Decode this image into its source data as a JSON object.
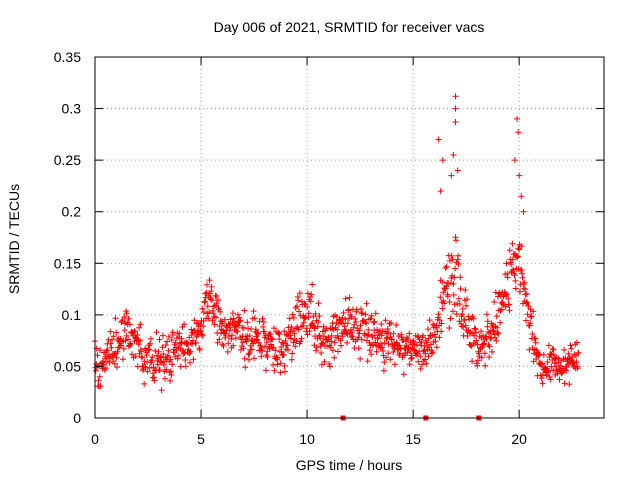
{
  "chart_data": {
    "type": "scatter",
    "title": "Day 006 of 2021, SRMTID for receiver vacs",
    "xlabel": "GPS time / hours",
    "ylabel": "SRMTID / TECUs",
    "xlim": [
      0,
      24
    ],
    "ylim": [
      0,
      0.35
    ],
    "xticks": [
      0,
      5,
      10,
      15,
      20
    ],
    "xtick_labels": [
      "0",
      "5",
      "10",
      "15",
      "20"
    ],
    "yticks": [
      0,
      0.05,
      0.1,
      0.15,
      0.2,
      0.25,
      0.3,
      0.35
    ],
    "ytick_labels": [
      "0",
      "0.05",
      "0.1",
      "0.15",
      "0.2",
      "0.25",
      "0.3",
      "0.35"
    ],
    "grid": true,
    "marker": "plus",
    "series": [
      {
        "name": "SRMTID",
        "color": "#ff0000",
        "sampling_hours": 0.02,
        "x_start": 0.0,
        "x_end": 22.8,
        "envelope": [
          {
            "x": 0.0,
            "y": 0.06,
            "spread": 0.02
          },
          {
            "x": 0.3,
            "y": 0.045,
            "spread": 0.02
          },
          {
            "x": 0.6,
            "y": 0.06,
            "spread": 0.02
          },
          {
            "x": 1.0,
            "y": 0.075,
            "spread": 0.025
          },
          {
            "x": 1.5,
            "y": 0.085,
            "spread": 0.025
          },
          {
            "x": 2.0,
            "y": 0.07,
            "spread": 0.025
          },
          {
            "x": 2.5,
            "y": 0.055,
            "spread": 0.025
          },
          {
            "x": 3.0,
            "y": 0.055,
            "spread": 0.025
          },
          {
            "x": 3.5,
            "y": 0.06,
            "spread": 0.025
          },
          {
            "x": 4.0,
            "y": 0.07,
            "spread": 0.025
          },
          {
            "x": 4.5,
            "y": 0.075,
            "spread": 0.025
          },
          {
            "x": 5.0,
            "y": 0.09,
            "spread": 0.03
          },
          {
            "x": 5.4,
            "y": 0.12,
            "spread": 0.03
          },
          {
            "x": 6.0,
            "y": 0.085,
            "spread": 0.025
          },
          {
            "x": 7.0,
            "y": 0.08,
            "spread": 0.025
          },
          {
            "x": 8.0,
            "y": 0.075,
            "spread": 0.025
          },
          {
            "x": 8.8,
            "y": 0.065,
            "spread": 0.025
          },
          {
            "x": 9.5,
            "y": 0.09,
            "spread": 0.025
          },
          {
            "x": 10.2,
            "y": 0.1,
            "spread": 0.03
          },
          {
            "x": 10.7,
            "y": 0.07,
            "spread": 0.025
          },
          {
            "x": 11.5,
            "y": 0.085,
            "spread": 0.025
          },
          {
            "x": 12.5,
            "y": 0.09,
            "spread": 0.03
          },
          {
            "x": 13.5,
            "y": 0.075,
            "spread": 0.025
          },
          {
            "x": 14.5,
            "y": 0.065,
            "spread": 0.02
          },
          {
            "x": 15.5,
            "y": 0.065,
            "spread": 0.02
          },
          {
            "x": 16.0,
            "y": 0.08,
            "spread": 0.025
          },
          {
            "x": 16.5,
            "y": 0.12,
            "spread": 0.035
          },
          {
            "x": 17.0,
            "y": 0.14,
            "spread": 0.04
          },
          {
            "x": 17.6,
            "y": 0.08,
            "spread": 0.025
          },
          {
            "x": 18.2,
            "y": 0.07,
            "spread": 0.025
          },
          {
            "x": 18.8,
            "y": 0.085,
            "spread": 0.025
          },
          {
            "x": 19.5,
            "y": 0.13,
            "spread": 0.035
          },
          {
            "x": 20.0,
            "y": 0.15,
            "spread": 0.035
          },
          {
            "x": 20.5,
            "y": 0.09,
            "spread": 0.025
          },
          {
            "x": 21.0,
            "y": 0.05,
            "spread": 0.018
          },
          {
            "x": 22.0,
            "y": 0.05,
            "spread": 0.018
          },
          {
            "x": 22.8,
            "y": 0.06,
            "spread": 0.018
          }
        ],
        "peaks": [
          {
            "x": 16.2,
            "y": 0.27
          },
          {
            "x": 16.4,
            "y": 0.25
          },
          {
            "x": 16.3,
            "y": 0.22
          },
          {
            "x": 16.8,
            "y": 0.235
          },
          {
            "x": 17.0,
            "y": 0.312
          },
          {
            "x": 17.0,
            "y": 0.3
          },
          {
            "x": 17.0,
            "y": 0.287
          },
          {
            "x": 16.9,
            "y": 0.255
          },
          {
            "x": 17.1,
            "y": 0.24
          },
          {
            "x": 19.8,
            "y": 0.25
          },
          {
            "x": 19.9,
            "y": 0.29
          },
          {
            "x": 19.95,
            "y": 0.277
          },
          {
            "x": 20.0,
            "y": 0.235
          },
          {
            "x": 20.1,
            "y": 0.215
          },
          {
            "x": 20.2,
            "y": 0.2
          }
        ],
        "zero_points": [
          11.7,
          15.6,
          18.1
        ]
      }
    ]
  }
}
